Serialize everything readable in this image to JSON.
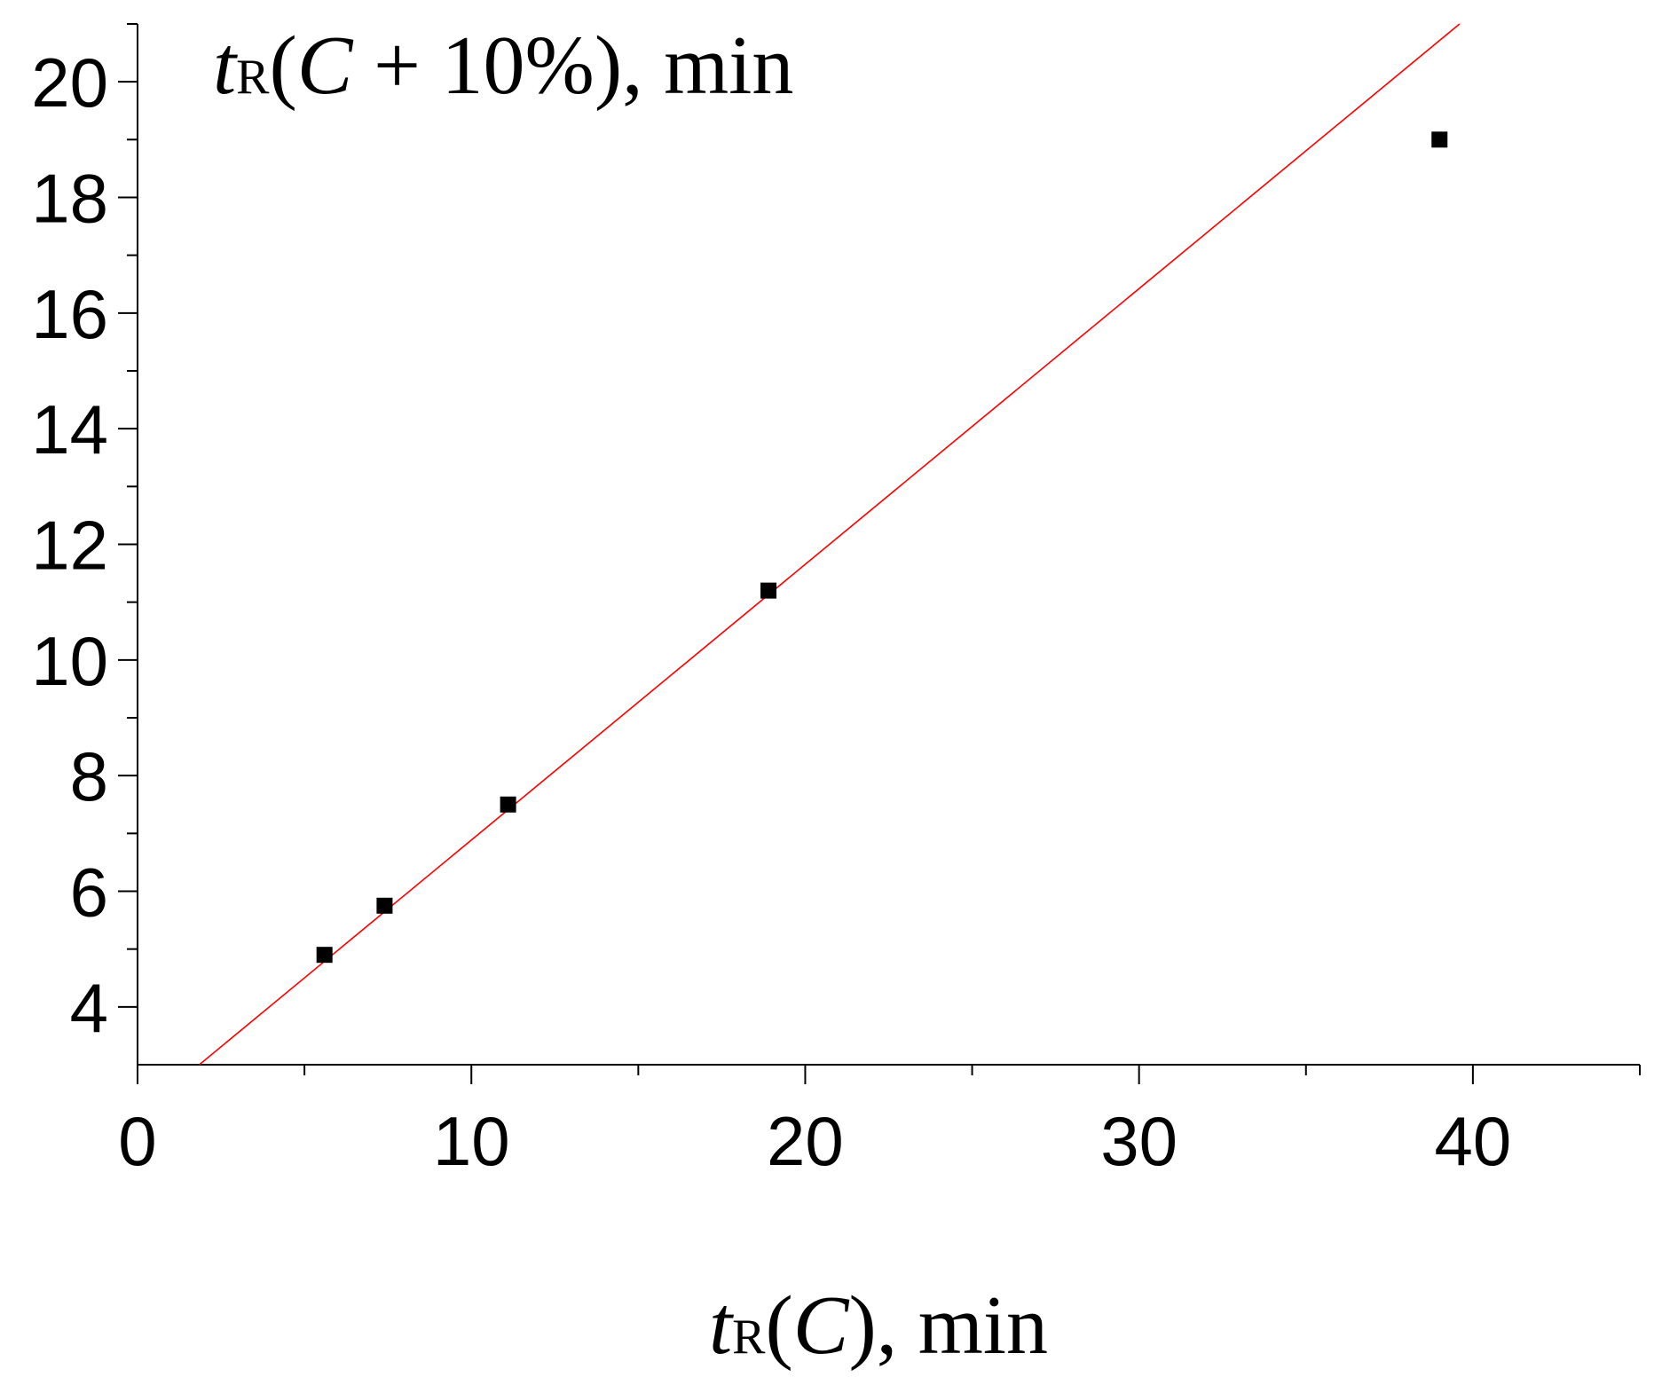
{
  "chart_data": {
    "type": "scatter",
    "ylabel": {
      "t": "t",
      "sub": "R",
      "open": "(",
      "C": "C",
      "rest": " + 10%), min"
    },
    "xlabel": {
      "t": "t",
      "sub": "R",
      "open": "(",
      "C": "C",
      "rest": "), min"
    },
    "xlim": [
      0,
      45
    ],
    "ylim": [
      3,
      21
    ],
    "x_major_ticks": [
      0,
      10,
      20,
      30,
      40
    ],
    "x_tick_labels": [
      "0",
      "10",
      "20",
      "30",
      "40"
    ],
    "x_minor_ticks": [
      5,
      15,
      25,
      35,
      45
    ],
    "y_major_ticks": [
      4,
      6,
      8,
      10,
      12,
      14,
      16,
      18,
      20
    ],
    "y_tick_labels": [
      "4",
      "6",
      "8",
      "10",
      "12",
      "14",
      "16",
      "18",
      "20"
    ],
    "y_minor_ticks": [
      5,
      7,
      9,
      11,
      13,
      15,
      17,
      19,
      21
    ],
    "grid": false,
    "legend": "none",
    "series": [
      {
        "marker": "square",
        "color": "#000000",
        "points": [
          {
            "x": 5.6,
            "y": 4.9
          },
          {
            "x": 7.4,
            "y": 5.75
          },
          {
            "x": 11.1,
            "y": 7.5
          },
          {
            "x": 18.9,
            "y": 11.2
          },
          {
            "x": 39.0,
            "y": 19.0
          }
        ]
      }
    ],
    "fit_line": {
      "color": "#ff0000",
      "x": [
        1.85,
        39.6
      ],
      "y": [
        3.0,
        21.0
      ]
    }
  }
}
